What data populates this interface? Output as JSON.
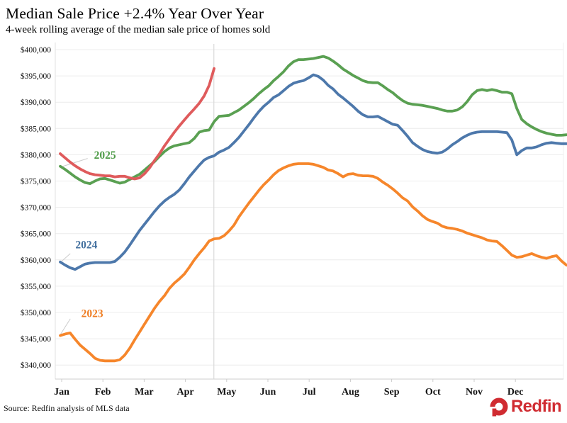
{
  "header": {
    "title": "Median Sale Price +2.4% Year Over Year",
    "subtitle": "4-week rolling average of the median sale price of homes sold"
  },
  "footer": {
    "source": "Source: Redfin analysis of MLS data",
    "logo_text": "Redfin"
  },
  "colors": {
    "current_year_line": "#df5b5c",
    "line_2025": "#5aa052",
    "line_2024": "#4d78ab",
    "line_2023": "#f6862b",
    "grid": "#ececec",
    "axis": "#cccccc",
    "current_date_marker": "#d9d9d9",
    "leader": "#cccccc",
    "logo_red": "#d02b31",
    "text": "#000000"
  },
  "chart_data": {
    "type": "line",
    "title": "Median Sale Price +2.4% Year Over Year",
    "subtitle": "4-week rolling average of the median sale price of homes sold",
    "x_axis": {
      "tick_labels": [
        "Jan",
        "Feb",
        "Mar",
        "Apr",
        "May",
        "Jun",
        "Jul",
        "Aug",
        "Sep",
        "Oct",
        "Nov",
        "Dec"
      ],
      "unit": "month-of-year"
    },
    "y_axis": {
      "unit": "USD",
      "min": 340000,
      "max": 400000,
      "grid": true,
      "ticks": [
        {
          "value": 400000,
          "label": "$400,000"
        },
        {
          "value": 395000,
          "label": "$395,000"
        },
        {
          "value": 390000,
          "label": "$390,000"
        },
        {
          "value": 385000,
          "label": "$385,000"
        },
        {
          "value": 380000,
          "label": "$380,000"
        },
        {
          "value": 375000,
          "label": "$375,000"
        },
        {
          "value": 370000,
          "label": "$370,000"
        },
        {
          "value": 365000,
          "label": "$365,000"
        },
        {
          "value": 360000,
          "label": "$360,000"
        },
        {
          "value": 355000,
          "label": "$355,000"
        },
        {
          "value": 350000,
          "label": "$350,000"
        },
        {
          "value": 345000,
          "label": "$345,000"
        },
        {
          "value": 340000,
          "label": "$340,000"
        }
      ]
    },
    "current_date_marker_month": 3.69,
    "series": [
      {
        "id": "line-2023",
        "label": "2023",
        "color": "#f6862b",
        "x_start_month": -0.034,
        "x_step_month": 0.1203,
        "values_usd_thousands": [
          345.6,
          345.9,
          346.1,
          344.9,
          343.8,
          343.0,
          342.2,
          341.3,
          340.9,
          340.8,
          340.8,
          340.8,
          341.0,
          341.9,
          343.2,
          344.8,
          346.3,
          347.8,
          349.3,
          350.8,
          352.1,
          353.2,
          354.6,
          355.6,
          356.4,
          357.3,
          358.6,
          360.0,
          361.2,
          362.3,
          363.6,
          364.0,
          364.1,
          364.6,
          365.5,
          366.6,
          368.2,
          369.5,
          370.8,
          372.0,
          373.2,
          374.3,
          375.2,
          376.2,
          377.0,
          377.5,
          377.9,
          378.2,
          378.3,
          378.3,
          378.3,
          378.2,
          377.9,
          377.6,
          377.1,
          376.9,
          376.4,
          375.8,
          376.3,
          376.4,
          376.1,
          376.0,
          376.0,
          375.9,
          375.5,
          374.8,
          374.2,
          373.5,
          372.7,
          371.8,
          371.2,
          370.1,
          369.3,
          368.4,
          367.7,
          367.3,
          367.0,
          366.4,
          366.1,
          366.0,
          365.8,
          365.5,
          365.1,
          364.8,
          364.5,
          364.2,
          363.8,
          363.6,
          363.5,
          362.7,
          361.8,
          360.9,
          360.5,
          360.6,
          360.9,
          361.2,
          360.8,
          360.5,
          360.3,
          360.6,
          360.8,
          359.8,
          359.0
        ]
      },
      {
        "id": "line-2024",
        "label": "2024",
        "color": "#4d78ab",
        "x_start_month": -0.034,
        "x_step_month": 0.1203,
        "values_usd_thousands": [
          359.6,
          359.0,
          358.5,
          358.2,
          358.7,
          359.2,
          359.4,
          359.5,
          359.5,
          359.5,
          359.5,
          359.7,
          360.5,
          361.5,
          362.8,
          364.2,
          365.6,
          366.8,
          368.0,
          369.2,
          370.3,
          371.2,
          371.9,
          372.5,
          373.3,
          374.5,
          375.8,
          376.9,
          378.0,
          379.0,
          379.5,
          379.8,
          380.5,
          380.9,
          381.4,
          382.3,
          383.3,
          384.5,
          385.7,
          387.0,
          388.2,
          389.2,
          390.0,
          390.9,
          391.4,
          392.2,
          393.0,
          393.6,
          393.9,
          394.1,
          394.6,
          395.2,
          394.9,
          394.2,
          393.2,
          392.5,
          391.5,
          390.8,
          390.0,
          389.2,
          388.3,
          387.6,
          387.2,
          387.2,
          387.3,
          386.8,
          386.3,
          385.8,
          385.6,
          384.6,
          383.5,
          382.3,
          381.6,
          381.0,
          380.6,
          380.4,
          380.3,
          380.5,
          381.1,
          381.9,
          382.5,
          383.2,
          383.7,
          384.1,
          384.3,
          384.4,
          384.4,
          384.4,
          384.4,
          384.3,
          384.2,
          382.8,
          380.0,
          380.8,
          381.3,
          381.3,
          381.5,
          381.9,
          382.2,
          382.3,
          382.2,
          382.1,
          382.1
        ]
      },
      {
        "id": "line-2025",
        "label": "2025",
        "color": "#5aa052",
        "x_start_month": -0.034,
        "x_step_month": 0.1203,
        "values_usd_thousands": [
          377.8,
          377.2,
          376.5,
          375.8,
          375.2,
          374.7,
          374.5,
          375.0,
          375.4,
          375.5,
          375.2,
          374.9,
          374.6,
          374.8,
          375.3,
          375.8,
          376.3,
          377.1,
          377.9,
          378.7,
          379.7,
          380.6,
          381.3,
          381.7,
          381.9,
          382.1,
          382.3,
          383.1,
          384.3,
          384.6,
          384.7,
          386.3,
          387.3,
          387.4,
          387.5,
          388.0,
          388.5,
          389.2,
          389.9,
          390.7,
          391.6,
          392.4,
          393.1,
          394.1,
          394.9,
          395.8,
          396.9,
          397.7,
          398.1,
          398.1,
          398.2,
          398.3,
          398.5,
          398.7,
          398.4,
          397.8,
          397.1,
          396.3,
          395.7,
          395.1,
          394.6,
          394.1,
          393.8,
          393.7,
          393.7,
          393.1,
          392.4,
          391.8,
          391.0,
          390.3,
          389.8,
          389.6,
          389.5,
          389.4,
          389.2,
          389.0,
          388.8,
          388.5,
          388.3,
          388.3,
          388.5,
          389.1,
          390.1,
          391.4,
          392.2,
          392.4,
          392.2,
          392.4,
          392.2,
          391.9,
          391.9,
          391.6,
          388.8,
          386.7,
          385.9,
          385.3,
          384.8,
          384.4,
          384.1,
          383.9,
          383.7,
          383.7,
          383.8
        ]
      },
      {
        "id": "line-current-year",
        "label": "",
        "color": "#df5b5c",
        "x_start_month": -0.034,
        "x_step_month": 0.1203,
        "values_usd_thousands": [
          380.2,
          379.4,
          378.6,
          377.9,
          377.3,
          376.8,
          376.4,
          376.2,
          376.1,
          376.0,
          376.0,
          375.8,
          375.9,
          375.9,
          375.6,
          375.4,
          375.6,
          376.4,
          377.5,
          378.9,
          380.2,
          381.7,
          383.0,
          384.3,
          385.5,
          386.6,
          387.7,
          388.7,
          389.8,
          391.2,
          393.2,
          396.4
        ]
      }
    ],
    "annotations": [
      {
        "text": "2025",
        "color": "#4e9b47",
        "month": 1.05,
        "value_k": 379.9,
        "leader_from": [
          0.63,
          379.3
        ],
        "leader_to": [
          0.03,
          377.8
        ]
      },
      {
        "text": "2024",
        "color": "#44719f",
        "month": 0.6,
        "value_k": 362.9,
        "leader_from": [
          0.21,
          361.2
        ],
        "leader_to": [
          -0.02,
          359.6
        ]
      },
      {
        "text": "2023",
        "color": "#ef7d22",
        "month": 0.74,
        "value_k": 349.8,
        "leader_from": [
          0.21,
          348.8
        ],
        "leader_to": [
          -0.03,
          345.8
        ]
      }
    ]
  }
}
